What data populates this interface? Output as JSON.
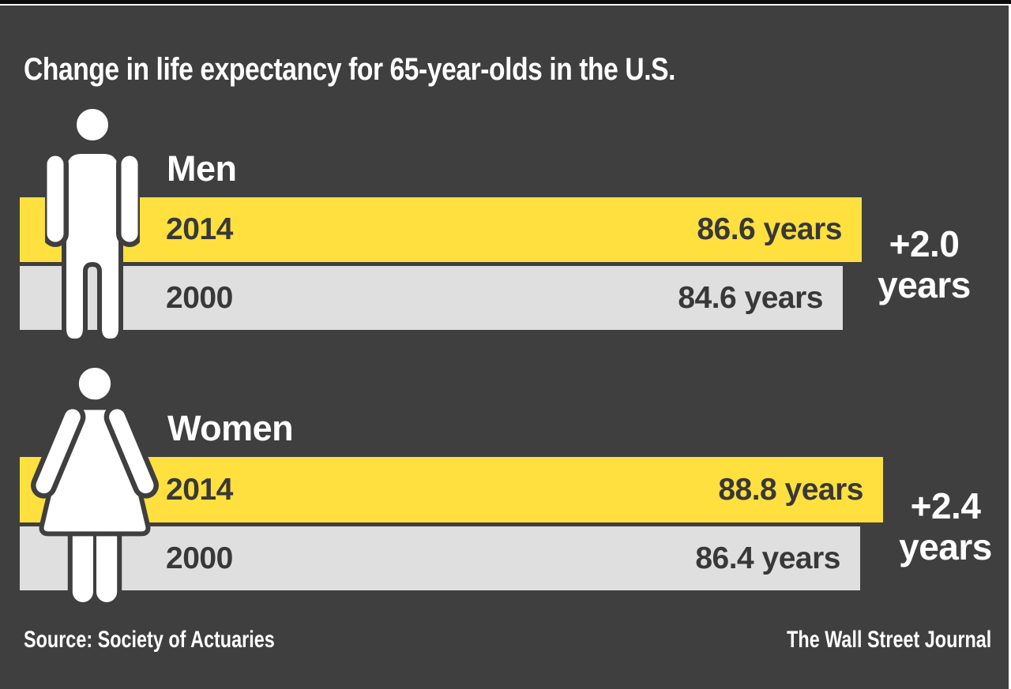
{
  "title": "Change in life expectancy for 65-year-olds in the U.S.",
  "footer": {
    "source": "Source: Society of Actuaries",
    "credit": "The Wall Street Journal"
  },
  "colors": {
    "background": "#3F3F3F",
    "top_bar": "#0B0B0B",
    "accent_line": "#FFFFFF",
    "highlight_bar": "#FFE03E",
    "muted_bar": "#DFDFDF",
    "text_light": "#FFFFFF",
    "text_dark": "#383838"
  },
  "chart_data": {
    "type": "bar",
    "title": "Change in life expectancy for 65-year-olds in the U.S.",
    "unit": "years",
    "orientation": "horizontal",
    "grid": false,
    "legend_position": "none",
    "categories": [
      "2014",
      "2000"
    ],
    "groups": [
      {
        "label": "Men",
        "icon": "male-figure-icon",
        "bars": [
          {
            "year": "2014",
            "value": 86.6,
            "label": "86.6 years",
            "color": "#FFE03E"
          },
          {
            "year": "2000",
            "value": 84.6,
            "label": "84.6 years",
            "color": "#DFDFDF"
          }
        ],
        "change": {
          "amount": "+2.0",
          "unit": "years"
        }
      },
      {
        "label": "Women",
        "icon": "female-figure-icon",
        "bars": [
          {
            "year": "2014",
            "value": 88.8,
            "label": "88.8 years",
            "color": "#FFE03E"
          },
          {
            "year": "2000",
            "value": 86.4,
            "label": "86.4 years",
            "color": "#DFDFDF"
          }
        ],
        "change": {
          "amount": "+2.4",
          "unit": "years"
        }
      }
    ]
  }
}
